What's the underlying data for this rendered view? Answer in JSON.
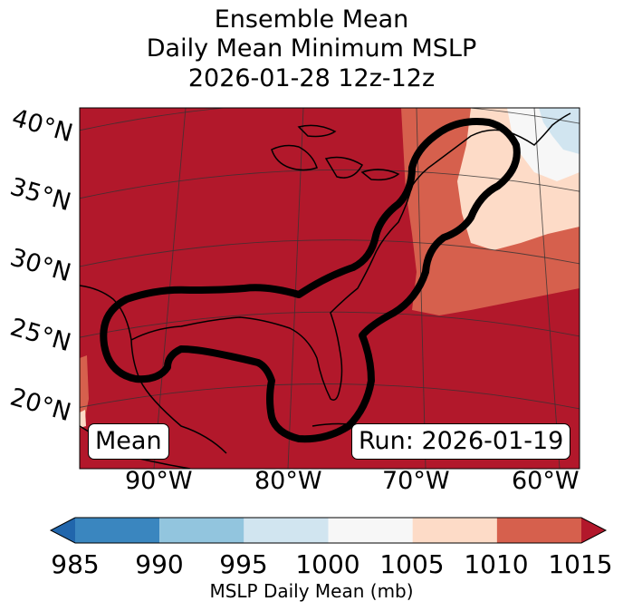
{
  "title": {
    "line1": "Ensemble Mean",
    "line2": "Daily Mean Minimum MSLP",
    "line3": "2026-01-28 12z-12z"
  },
  "map": {
    "lat_labels": [
      "40°N",
      "35°N",
      "30°N",
      "25°N",
      "20°N"
    ],
    "lon_labels": [
      "90°W",
      "80°W",
      "70°W",
      "60°W"
    ],
    "mean_label": "Mean",
    "run_label": "Run: 2026-01-19"
  },
  "colorbar": {
    "ticks": [
      "985",
      "990",
      "995",
      "1000",
      "1005",
      "1010",
      "1015"
    ],
    "label": "MSLP Daily Mean (mb)",
    "bins": [
      {
        "from": 985,
        "to": 990,
        "color": "#3a86bf"
      },
      {
        "from": 990,
        "to": 995,
        "color": "#92c5de"
      },
      {
        "from": 995,
        "to": 1000,
        "color": "#d1e5f0"
      },
      {
        "from": 1000,
        "to": 1005,
        "color": "#f7f7f7"
      },
      {
        "from": 1005,
        "to": 1010,
        "color": "#fddbc7"
      },
      {
        "from": 1010,
        "to": 1015,
        "color": "#d6604d"
      }
    ],
    "under_color": "#2166ac",
    "over_color": "#b2182b"
  }
}
